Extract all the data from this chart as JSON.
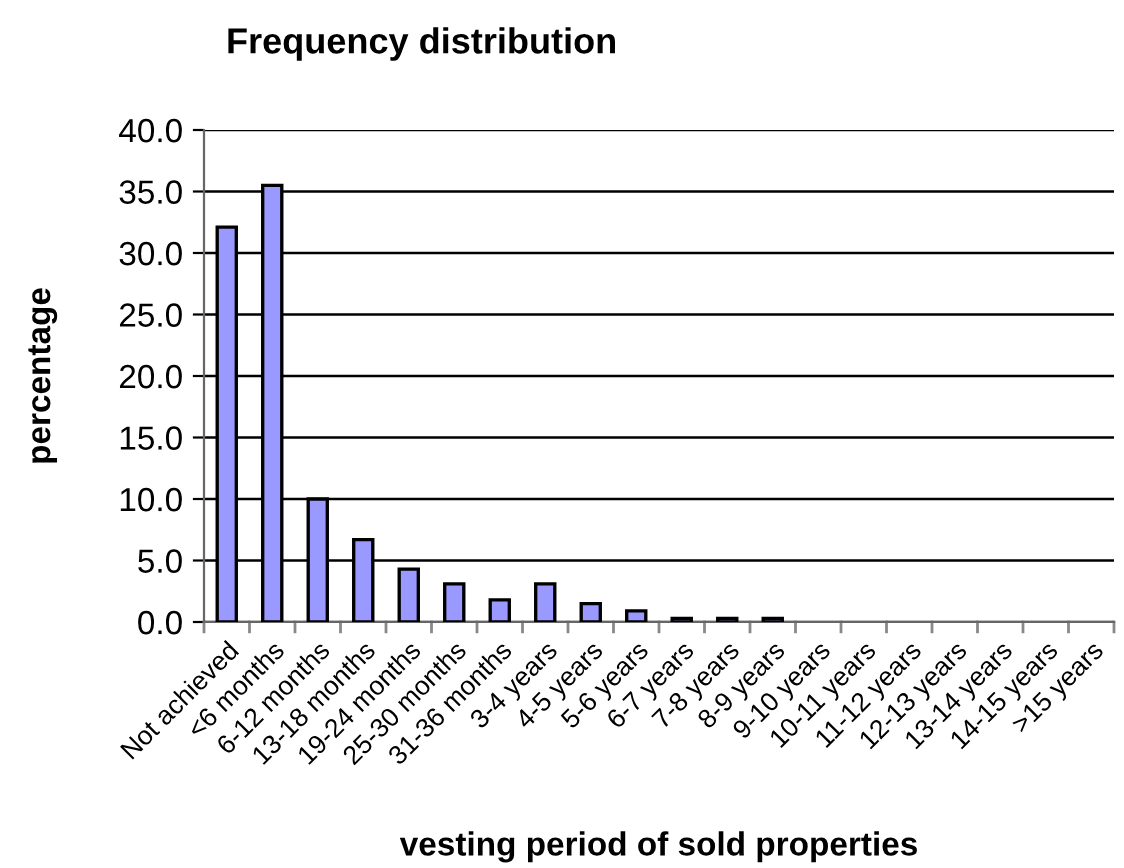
{
  "chart_data": {
    "type": "bar",
    "title": "Frequency distribution",
    "xlabel": "vesting period of sold properties",
    "ylabel": "percentage",
    "categories": [
      "Not achieved",
      "<6 months",
      "6-12 months",
      "13-18 months",
      "19-24 months",
      "25-30 months",
      "31-36 months",
      "3-4 years",
      "4-5 years",
      "5-6 years",
      "6-7 years",
      "7-8 years",
      "8-9 years",
      "9-10 years",
      "10-11 years",
      "11-12 years",
      "12-13 years",
      "13-14 years",
      "14-15 years",
      ">15 years"
    ],
    "values": [
      32.1,
      35.5,
      10.0,
      6.7,
      4.3,
      3.1,
      1.8,
      3.1,
      1.5,
      0.9,
      0.3,
      0.3,
      0.3,
      null,
      null,
      null,
      null,
      null,
      null,
      null
    ],
    "color": "#9999ff",
    "ylim": [
      0,
      40
    ],
    "yticks": [
      {
        "value": 0,
        "label": "0.0"
      },
      {
        "value": 5,
        "label": "5.0"
      },
      {
        "value": 10,
        "label": "10.0"
      },
      {
        "value": 15,
        "label": "15.0"
      },
      {
        "value": 20,
        "label": "20.0"
      },
      {
        "value": 25,
        "label": "25.0"
      },
      {
        "value": 30,
        "label": "30.0"
      },
      {
        "value": 35,
        "label": "35.0"
      },
      {
        "value": 40,
        "label": "40.0"
      }
    ],
    "grid": "y"
  }
}
